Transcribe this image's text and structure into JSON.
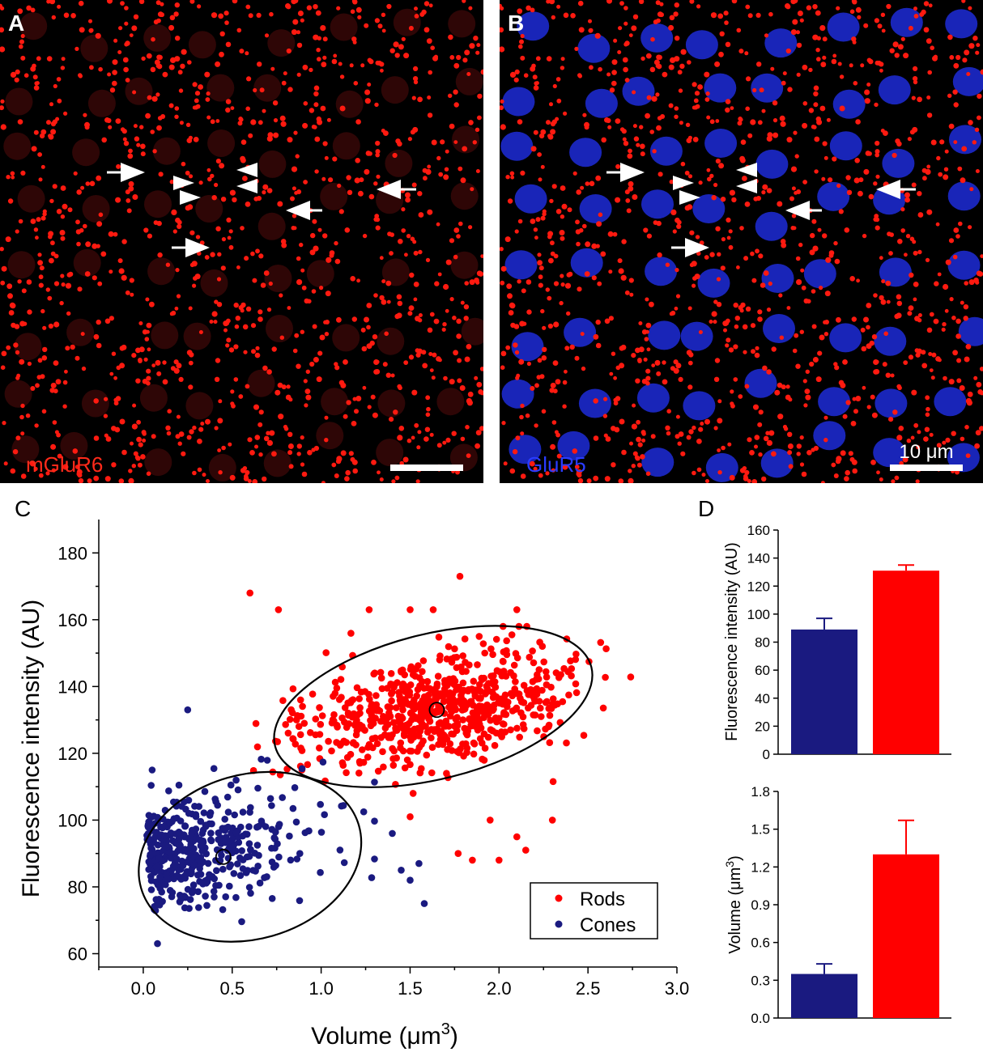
{
  "panels": {
    "a": {
      "letter": "A",
      "stain_label": "mGluR6",
      "stain_color": "#ff2a1a"
    },
    "b": {
      "letter": "B",
      "stain_label": "GluR5",
      "stain_color": "#2a3cff",
      "scale_bar_label": "10 μm"
    }
  },
  "colors": {
    "rods": "#ff0000",
    "cones": "#1a1a80",
    "axis": "#000000",
    "image_bg": "#000000"
  },
  "chart_data": [
    {
      "panel_letter": "C",
      "type": "scatter",
      "xlabel": "Volume (μm",
      "xlabel_sup": "3",
      "xlabel_tail": ")",
      "ylabel": "Fluorescence intensity (AU)",
      "xlim": [
        -0.25,
        3.0
      ],
      "ylim": [
        56,
        190
      ],
      "xticks": [
        0.0,
        0.5,
        1.0,
        1.5,
        2.0,
        2.5,
        3.0
      ],
      "xtick_labels": [
        "0.0",
        "0.5",
        "1.0",
        "1.5",
        "2.0",
        "2.5",
        "3.0"
      ],
      "yticks": [
        60,
        80,
        100,
        120,
        140,
        160,
        180
      ],
      "ytick_labels": [
        "60",
        "80",
        "100",
        "120",
        "140",
        "160",
        "180"
      ],
      "legend": {
        "placement": "bottom-right",
        "items": [
          "Rods",
          "Cones"
        ]
      },
      "series": [
        {
          "name": "Rods",
          "color": "#ff0000",
          "n": 700,
          "center": [
            1.65,
            133
          ],
          "ellipse": {
            "center": [
              1.63,
              134
            ],
            "x_extent": [
              0.7,
              2.57
            ],
            "y_extent": [
              108,
              161
            ]
          },
          "outliers": [
            [
              0.6,
              168
            ],
            [
              0.76,
              163
            ],
            [
              1.78,
              173
            ],
            [
              1.27,
              163
            ],
            [
              1.5,
              163
            ],
            [
              1.63,
              163
            ],
            [
              2.1,
              163
            ],
            [
              1.95,
              100
            ],
            [
              2.1,
              95
            ],
            [
              2.3,
              100
            ],
            [
              2.15,
              91
            ],
            [
              1.77,
              90
            ],
            [
              1.85,
              88
            ],
            [
              2.0,
              88
            ],
            [
              1.5,
              101
            ]
          ]
        },
        {
          "name": "Cones",
          "color": "#1a1a80",
          "n": 420,
          "center": [
            0.45,
            89
          ],
          "ellipse": {
            "center": [
              0.6,
              89
            ],
            "x_extent": [
              0.0,
              1.3
            ],
            "y_extent": [
              60,
              120
            ]
          },
          "outliers": [
            [
              0.25,
              133
            ],
            [
              0.05,
              115
            ],
            [
              0.08,
              63
            ],
            [
              1.45,
              85
            ],
            [
              1.5,
              82
            ],
            [
              1.58,
              75
            ],
            [
              1.55,
              87
            ],
            [
              1.4,
              96
            ]
          ]
        }
      ]
    },
    {
      "panel_letter": "D",
      "type": "bar",
      "categories": [
        "Cones",
        "Rods"
      ],
      "ylabel": "Fluorescence intensity (AU)",
      "ylim": [
        0,
        160
      ],
      "yticks": [
        0,
        20,
        40,
        60,
        80,
        100,
        120,
        140,
        160
      ],
      "ytick_labels": [
        "0",
        "20",
        "40",
        "60",
        "80",
        "100",
        "120",
        "140",
        "160"
      ],
      "values": [
        89,
        131
      ],
      "errors": [
        8,
        4
      ],
      "colors": [
        "#1a1a80",
        "#ff0000"
      ]
    },
    {
      "type": "bar",
      "categories": [
        "Cones",
        "Rods"
      ],
      "ylabel": "Volume (μm",
      "ylabel_sup": "3",
      "ylabel_tail": ")",
      "ylim": [
        0,
        1.8
      ],
      "yticks": [
        0.0,
        0.3,
        0.6,
        0.9,
        1.2,
        1.5,
        1.8
      ],
      "ytick_labels": [
        "0.0",
        "0.3",
        "0.6",
        "0.9",
        "1.2",
        "1.5",
        "1.8"
      ],
      "values": [
        0.35,
        1.3
      ],
      "errors": [
        0.08,
        0.27
      ],
      "colors": [
        "#1a1a80",
        "#ff0000"
      ]
    }
  ]
}
